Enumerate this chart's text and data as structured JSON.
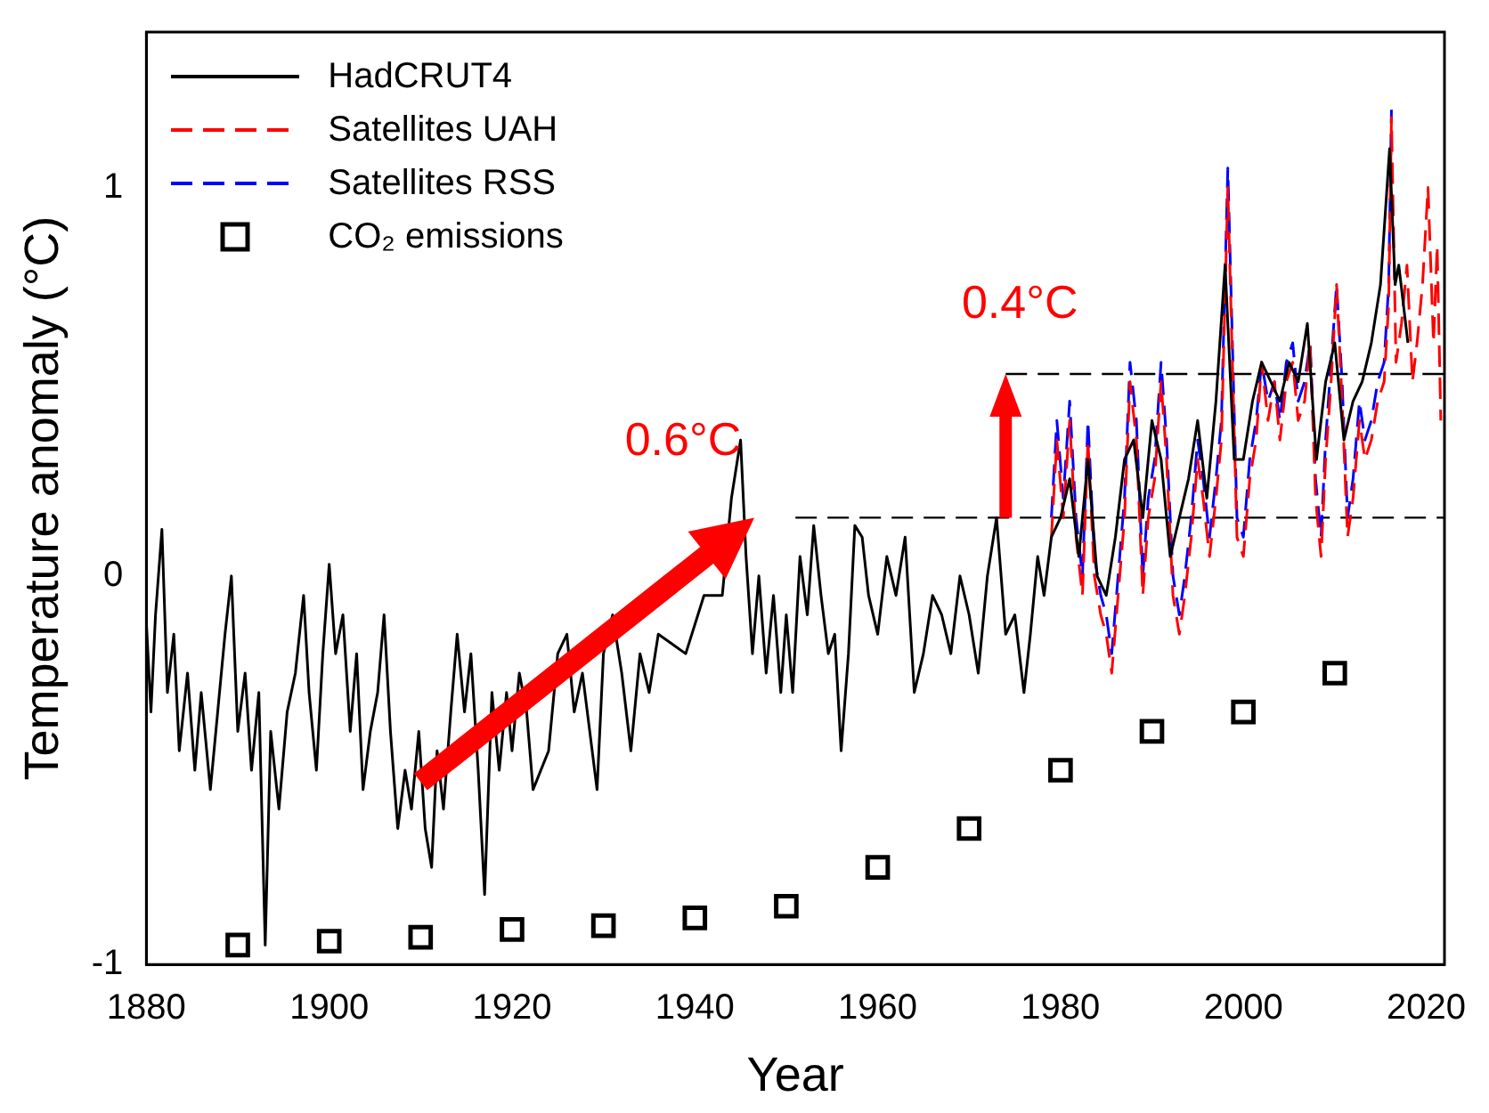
{
  "chart_data": {
    "type": "line",
    "xlabel": "Year",
    "ylabel": "Temperature anomaly (°C)",
    "xlim": [
      1880,
      2022
    ],
    "ylim": [
      -1,
      1.4
    ],
    "xticks": [
      1880,
      1900,
      1920,
      1940,
      1960,
      1980,
      2000,
      2020
    ],
    "yticks": [
      -1,
      0,
      1
    ],
    "grid": false,
    "legend": "top left",
    "marker": "none",
    "line_style": "solid",
    "annotations": [
      "0.6°C",
      "0.4°C"
    ],
    "series": [
      {
        "name": "HadCRUT4",
        "color": "#000000",
        "x": [
          1880,
          1880.5,
          1881,
          1881.7,
          1882.3,
          1883,
          1883.6,
          1884.5,
          1885.3,
          1886,
          1887,
          1887.8,
          1888.6,
          1889.3,
          1890,
          1890.8,
          1891.5,
          1892.3,
          1893,
          1893.6,
          1894.5,
          1895.4,
          1896.3,
          1897.2,
          1897.8,
          1898.6,
          1899.3,
          1900,
          1900.7,
          1901.5,
          1902.3,
          1903,
          1903.7,
          1904.5,
          1905.3,
          1906,
          1906.7,
          1907.5,
          1908.3,
          1909,
          1909.8,
          1910.5,
          1911.2,
          1911.8,
          1912.5,
          1913.3,
          1914,
          1914.8,
          1915.5,
          1916.3,
          1917,
          1917.8,
          1918.6,
          1919.4,
          1920,
          1920.8,
          1921.6,
          1922.3,
          1923,
          1924,
          1925,
          1926,
          1926.8,
          1927.7,
          1928.5,
          1929.3,
          1930,
          1931,
          1932,
          1933,
          1934,
          1935,
          1936,
          1937,
          1938,
          1939,
          1940,
          1941,
          1942,
          1943,
          1944,
          1945,
          1945.6,
          1946.3,
          1947,
          1947.8,
          1948.6,
          1949.4,
          1950,
          1950.7,
          1951.5,
          1952.3,
          1953,
          1953.8,
          1954.6,
          1955.3,
          1956,
          1956.8,
          1957.5,
          1958.3,
          1959,
          1960,
          1961,
          1962,
          1963,
          1964,
          1965,
          1966,
          1967,
          1968,
          1969,
          1970,
          1971,
          1972,
          1973,
          1974,
          1975,
          1976,
          1976.7,
          1977.5,
          1978.2,
          1979,
          1980,
          1981,
          1982,
          1983,
          1984,
          1985,
          1986,
          1987,
          1988,
          1989,
          1990,
          1991,
          1992,
          1993,
          1994,
          1995,
          1996,
          1997,
          1998,
          1999,
          2000,
          2001,
          2002,
          2003,
          2004,
          2005,
          2006,
          2007,
          2008,
          2009,
          2010,
          2011,
          2012,
          2013,
          2014,
          2015,
          2016,
          2016.6,
          2017,
          2018
        ],
        "values": [
          -0.12,
          -0.35,
          -0.1,
          0.12,
          -0.3,
          -0.15,
          -0.45,
          -0.25,
          -0.5,
          -0.3,
          -0.55,
          -0.35,
          -0.15,
          0.0,
          -0.4,
          -0.25,
          -0.5,
          -0.3,
          -0.95,
          -0.4,
          -0.6,
          -0.35,
          -0.25,
          -0.05,
          -0.3,
          -0.5,
          -0.2,
          0.03,
          -0.2,
          -0.1,
          -0.4,
          -0.2,
          -0.55,
          -0.4,
          -0.3,
          -0.1,
          -0.4,
          -0.65,
          -0.5,
          -0.6,
          -0.4,
          -0.65,
          -0.75,
          -0.45,
          -0.6,
          -0.35,
          -0.15,
          -0.35,
          -0.2,
          -0.5,
          -0.82,
          -0.3,
          -0.5,
          -0.3,
          -0.45,
          -0.25,
          -0.35,
          -0.55,
          null,
          -0.45,
          -0.2,
          -0.15,
          -0.35,
          -0.25,
          -0.4,
          -0.55,
          -0.2,
          -0.1,
          -0.25,
          -0.45,
          -0.2,
          -0.3,
          -0.15,
          null,
          null,
          -0.2,
          null,
          -0.05,
          null,
          -0.05,
          0.2,
          0.35,
          0.05,
          -0.2,
          0.0,
          -0.25,
          -0.05,
          -0.3,
          -0.1,
          -0.3,
          0.05,
          -0.1,
          0.13,
          -0.05,
          -0.2,
          -0.15,
          -0.45,
          -0.2,
          0.13,
          0.1,
          -0.05,
          -0.15,
          0.05,
          -0.05,
          0.1,
          -0.3,
          -0.2,
          -0.05,
          -0.1,
          -0.2,
          0.0,
          -0.1,
          -0.25,
          0.0,
          0.15,
          -0.15,
          -0.1,
          -0.3,
          -0.15,
          0.05,
          -0.05,
          0.1,
          0.15,
          0.25,
          0.05,
          0.3,
          0.0,
          -0.05,
          0.1,
          0.3,
          0.35,
          0.15,
          0.4,
          0.3,
          0.05,
          0.15,
          0.25,
          0.4,
          0.2,
          0.45,
          0.8,
          0.3,
          0.3,
          0.45,
          0.55,
          0.5,
          0.45,
          0.55,
          0.5,
          0.65,
          0.3,
          0.5,
          0.6,
          0.35,
          0.45,
          0.5,
          0.6,
          0.75,
          1.1,
          0.75,
          0.8,
          0.6
        ]
      },
      {
        "name": "Satellites UAH",
        "color": "#ff0000",
        "line_style": "dashed",
        "x": [
          1979,
          1979.6,
          1980.3,
          1981,
          1981.7,
          1982.4,
          1983,
          1983.7,
          1984.4,
          1985,
          1985.6,
          1986.3,
          1987,
          1987.6,
          1988.3,
          1989,
          1989.6,
          1990.3,
          1991,
          1991.6,
          1992.3,
          1993,
          1993.6,
          1994.3,
          1995,
          1995.6,
          1996.3,
          1997,
          1997.6,
          1998.3,
          1998.8,
          1999.3,
          2000,
          2000.7,
          2001.4,
          2002,
          2002.7,
          2003.4,
          2004,
          2004.7,
          2005.4,
          2006,
          2006.7,
          2007.3,
          2007.9,
          2008.5,
          2009,
          2009.6,
          2010.2,
          2010.8,
          2011.4,
          2012,
          2012.7,
          2013.3,
          2014,
          2014.7,
          2015.4,
          2015.9,
          2016.2,
          2016.7,
          2017.3,
          2017.9,
          2018.5,
          2019,
          2019.6,
          2020.2,
          2020.8,
          2021.2,
          2021.6
        ],
        "values": [
          0.1,
          0.35,
          0.15,
          0.4,
          0.1,
          -0.05,
          0.35,
          0.0,
          -0.1,
          -0.15,
          -0.25,
          -0.05,
          0.15,
          0.5,
          0.35,
          -0.05,
          0.15,
          0.25,
          0.5,
          0.3,
          -0.05,
          -0.15,
          -0.05,
          0.1,
          0.3,
          0.2,
          0.05,
          0.2,
          0.35,
          1.0,
          0.55,
          0.1,
          0.05,
          0.25,
          0.35,
          0.55,
          0.4,
          0.5,
          0.35,
          0.5,
          0.55,
          0.4,
          0.45,
          0.6,
          0.2,
          0.05,
          0.3,
          0.5,
          0.75,
          0.45,
          0.1,
          0.2,
          0.4,
          0.3,
          0.35,
          0.45,
          0.5,
          0.7,
          1.18,
          0.55,
          0.65,
          0.8,
          0.5,
          0.6,
          0.75,
          1.0,
          0.6,
          0.85,
          0.4
        ]
      },
      {
        "name": "Satellites RSS",
        "color": "#0000ff",
        "line_style": "dashed",
        "x": [
          1979,
          1979.6,
          1980.3,
          1981,
          1981.7,
          1982.4,
          1983,
          1983.7,
          1984.4,
          1985,
          1985.6,
          1986.3,
          1987,
          1987.6,
          1988.3,
          1989,
          1989.6,
          1990.3,
          1991,
          1991.6,
          1992.3,
          1993,
          1993.6,
          1994.3,
          1995,
          1995.6,
          1996.3,
          1997,
          1997.6,
          1998.3,
          1998.8,
          1999.3,
          2000,
          2000.7,
          2001.4,
          2002,
          2002.7,
          2003.4,
          2004,
          2004.7,
          2005.4,
          2006,
          2006.7,
          2007.3,
          2007.9,
          2008.5,
          2009,
          2009.6,
          2010.2,
          2010.8,
          2011.4,
          2012,
          2012.7,
          2013.3,
          2014,
          2014.7,
          2015.4,
          2015.9,
          2016.2
        ],
        "values": [
          0.15,
          0.4,
          0.2,
          0.45,
          0.15,
          0.0,
          0.4,
          0.05,
          -0.05,
          -0.1,
          -0.2,
          0.0,
          0.2,
          0.55,
          0.4,
          0.0,
          0.2,
          0.3,
          0.55,
          0.35,
          0.0,
          -0.1,
          0.0,
          0.15,
          0.35,
          0.25,
          0.1,
          0.25,
          0.4,
          1.05,
          0.6,
          0.15,
          0.1,
          0.3,
          0.4,
          0.55,
          0.45,
          0.5,
          0.4,
          0.55,
          0.6,
          0.45,
          0.5,
          0.6,
          0.25,
          0.1,
          0.35,
          0.55,
          0.75,
          0.5,
          0.15,
          0.25,
          0.45,
          0.35,
          0.4,
          0.5,
          0.55,
          0.75,
          1.2
        ]
      },
      {
        "name": "CO₂ emissions",
        "color": "#000000",
        "type": "scatter",
        "marker": "square",
        "x": [
          1890,
          1900,
          1910,
          1920,
          1930,
          1940,
          1950,
          1960,
          1970,
          1980,
          1990,
          2000,
          2010
        ],
        "values": [
          -0.95,
          -0.94,
          -0.93,
          -0.91,
          -0.9,
          -0.88,
          -0.85,
          -0.75,
          -0.65,
          -0.5,
          -0.4,
          -0.35,
          -0.25
        ]
      },
      {
        "color": "#000000",
        "line_style": "dashed",
        "x": [
          1951,
          2022
        ],
        "values": [
          0.15,
          0.15
        ]
      },
      {
        "color": "#000000",
        "line_style": "dashed",
        "x": [
          1974,
          2022
        ],
        "values": [
          0.52,
          0.52
        ]
      }
    ]
  }
}
